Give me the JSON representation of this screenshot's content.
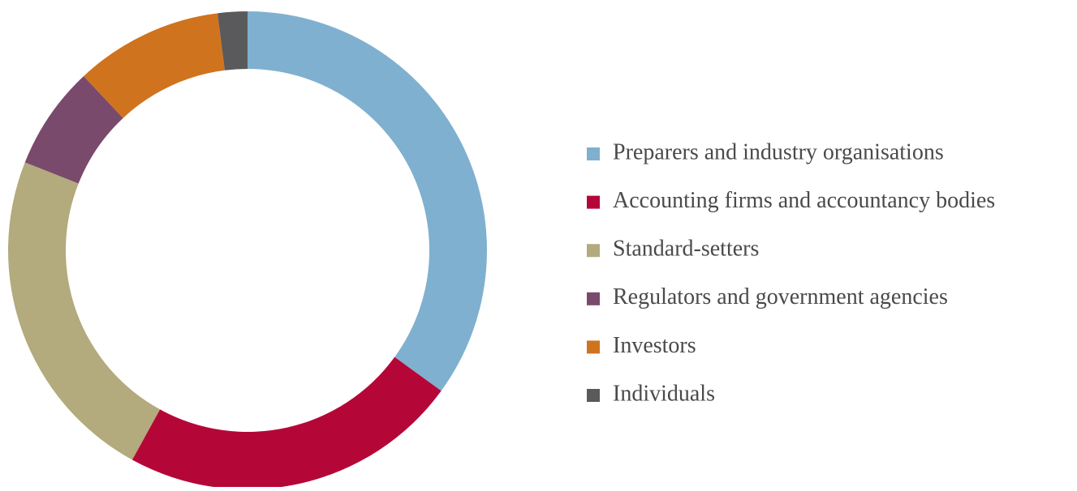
{
  "chart_data": {
    "type": "donut",
    "categories": [
      "Preparers and industry organisations",
      "Accounting firms and accountancy bodies",
      "Standard-setters",
      "Regulators and government  agencies",
      "Investors",
      "Individuals"
    ],
    "values": [
      35,
      23,
      23,
      7,
      10,
      2
    ],
    "colors": [
      "#7fb0cf",
      "#b50737",
      "#b3aa7d",
      "#7a4a6c",
      "#d0731e",
      "#5a5a5c"
    ],
    "legend": "right"
  }
}
